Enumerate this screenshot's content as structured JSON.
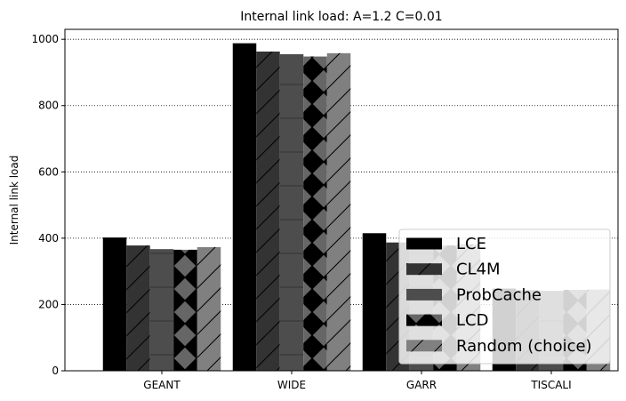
{
  "chart_data": {
    "type": "bar",
    "title": "Internal link load: A=1.2 C=0.01",
    "xlabel": "",
    "ylabel": "Internal link load",
    "categories": [
      "GEANT",
      "WIDE",
      "GARR",
      "TISCALI"
    ],
    "series": [
      {
        "name": "LCE",
        "values": [
          402,
          988,
          415,
          248
        ],
        "color": "#000000",
        "hatch": "none"
      },
      {
        "name": "CL4M",
        "values": [
          378,
          963,
          387,
          243
        ],
        "color": "#333333",
        "hatch": "diagonal"
      },
      {
        "name": "ProbCache",
        "values": [
          367,
          955,
          380,
          241
        ],
        "color": "#4d4d4d",
        "hatch": "horizontal"
      },
      {
        "name": "LCD",
        "values": [
          365,
          948,
          378,
          244
        ],
        "color": "#666666",
        "hatch": "chevron"
      },
      {
        "name": "Random (choice)",
        "values": [
          373,
          958,
          382,
          245
        ],
        "color": "#808080",
        "hatch": "diagonal"
      }
    ],
    "ylim": [
      0,
      1030
    ],
    "yticks": [
      0,
      200,
      400,
      600,
      800,
      1000
    ],
    "grid": "horizontal-dotted",
    "legend_position": "lower-right"
  }
}
